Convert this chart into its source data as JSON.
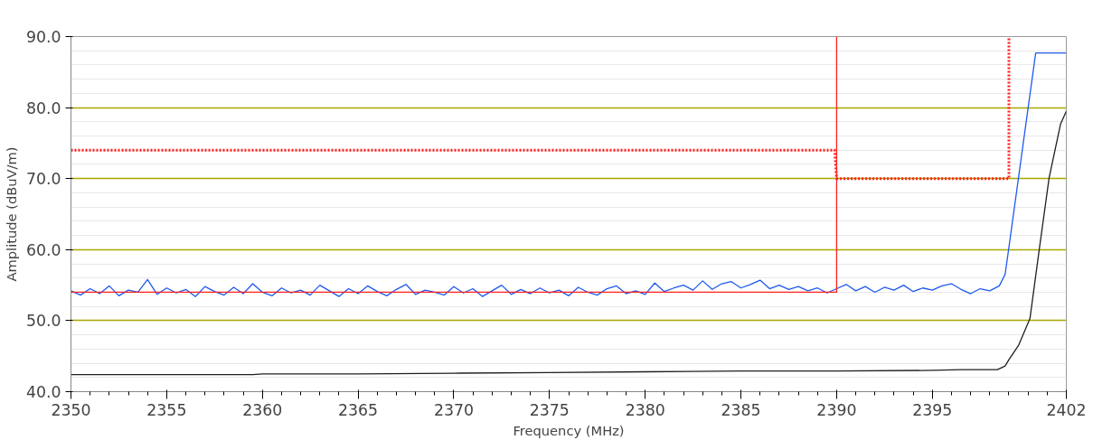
{
  "chart_data": {
    "type": "line",
    "xlabel": "Frequency (MHz)",
    "ylabel": "Amplitude (dBuV/m)",
    "xlim": [
      2350,
      2402
    ],
    "ylim": [
      40,
      90
    ],
    "xticks": [
      2350,
      2355,
      2360,
      2365,
      2370,
      2375,
      2380,
      2385,
      2390,
      2395,
      2402
    ],
    "yticks": [
      {
        "value": 40,
        "label": "40.0"
      },
      {
        "value": 50,
        "label": "50.0"
      },
      {
        "value": 60,
        "label": "60.0"
      },
      {
        "value": 70,
        "label": "70.0"
      },
      {
        "value": 80,
        "label": "80.0"
      },
      {
        "value": 90,
        "label": "90.0"
      }
    ],
    "grid": "y",
    "marker": "none",
    "line_style": "solid",
    "series": [
      {
        "color": "#1e5aef",
        "x": [
          2350,
          2350.5,
          2351,
          2351.5,
          2352,
          2352.5,
          2353,
          2353.5,
          2354,
          2354.5,
          2355,
          2355.5,
          2356,
          2356.5,
          2357,
          2357.5,
          2358,
          2358.5,
          2359,
          2359.5,
          2360,
          2360.5,
          2361,
          2361.5,
          2362,
          2362.5,
          2363,
          2363.5,
          2364,
          2364.5,
          2365,
          2365.5,
          2366,
          2366.5,
          2367,
          2367.5,
          2368,
          2368.5,
          2369,
          2369.5,
          2370,
          2370.5,
          2371,
          2371.5,
          2372,
          2372.5,
          2373,
          2373.5,
          2374,
          2374.5,
          2375,
          2375.5,
          2376,
          2376.5,
          2377,
          2377.5,
          2378,
          2378.5,
          2379,
          2379.5,
          2380,
          2380.5,
          2381,
          2381.5,
          2382,
          2382.5,
          2383,
          2383.5,
          2384,
          2384.5,
          2385,
          2385.5,
          2386,
          2386.5,
          2387,
          2387.5,
          2388,
          2388.5,
          2389,
          2389.5,
          2390,
          2390.5,
          2391,
          2391.5,
          2392,
          2392.5,
          2393,
          2393.5,
          2394,
          2394.5,
          2395,
          2395.5,
          2396,
          2396.5,
          2397,
          2397.5,
          2398,
          2398.5,
          2398.8,
          2399,
          2399.5,
          2400,
          2400.4,
          2402
        ],
        "values": [
          54.2,
          53.6,
          54.5,
          53.8,
          54.9,
          53.5,
          54.3,
          54.0,
          55.8,
          53.7,
          54.6,
          53.9,
          54.4,
          53.4,
          54.8,
          54.1,
          53.6,
          54.7,
          53.8,
          55.2,
          54.0,
          53.5,
          54.6,
          53.9,
          54.3,
          53.6,
          55.0,
          54.2,
          53.4,
          54.5,
          53.8,
          54.9,
          54.1,
          53.5,
          54.4,
          55.1,
          53.7,
          54.3,
          54.0,
          53.6,
          54.8,
          53.9,
          54.5,
          53.4,
          54.2,
          55.0,
          53.7,
          54.4,
          53.8,
          54.6,
          53.9,
          54.3,
          53.5,
          54.7,
          54.0,
          53.6,
          54.5,
          54.9,
          53.8,
          54.2,
          53.7,
          55.3,
          54.1,
          54.6,
          55.0,
          54.3,
          55.6,
          54.4,
          55.2,
          55.5,
          54.6,
          55.1,
          55.7,
          54.5,
          55.0,
          54.4,
          54.8,
          54.2,
          54.6,
          53.9,
          54.5,
          55.1,
          54.2,
          54.8,
          54.0,
          54.7,
          54.3,
          55.0,
          54.1,
          54.6,
          54.3,
          54.9,
          55.2,
          54.4,
          53.8,
          54.5,
          54.2,
          54.9,
          56.5,
          60.3,
          70.1,
          79.9,
          87.7,
          87.7
        ]
      },
      {
        "color": "#202020",
        "x": [
          2350,
          2359.5,
          2360,
          2365,
          2370,
          2375,
          2380,
          2385,
          2390,
          2395,
          2396.5,
          2398.4,
          2398.8,
          2399,
          2399.5,
          2400.1,
          2400.6,
          2401.1,
          2401.7,
          2402
        ],
        "values": [
          42.4,
          42.4,
          42.5,
          42.5,
          42.6,
          42.7,
          42.8,
          42.9,
          42.9,
          43.0,
          43.1,
          43.1,
          43.6,
          44.5,
          46.5,
          50.3,
          60.3,
          70.1,
          77.7,
          79.5
        ]
      },
      {
        "color": "#ff2020",
        "x": [
          2350,
          2390,
          2390
        ],
        "values": [
          54,
          54,
          90
        ]
      },
      {
        "color": "#ff2020",
        "line_style": "dotted",
        "x": [
          2350,
          2389.9,
          2390,
          2399,
          2399,
          2399
        ],
        "values": [
          74,
          74,
          70,
          70,
          70,
          90
        ]
      }
    ]
  }
}
